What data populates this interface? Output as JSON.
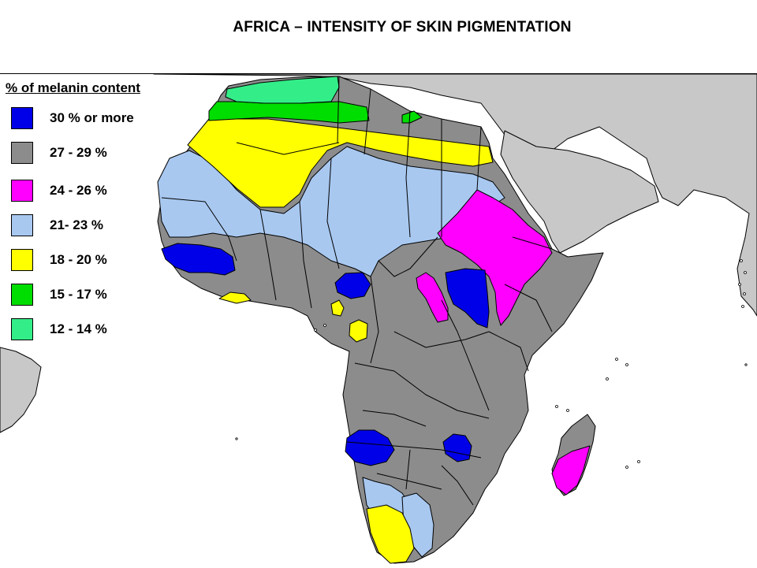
{
  "title": "AFRICA – INTENSITY OF SKIN PIGMENTATION",
  "legend": {
    "title": "% of melanin content",
    "items": [
      {
        "label": "30 % or more",
        "color": "#0000e8"
      },
      {
        "label": "27 - 29 %",
        "color": "#8c8c8c"
      },
      {
        "label": "24 - 26 %",
        "color": "#ff00ff"
      },
      {
        "label": "21- 23 %",
        "color": "#a8c8f0"
      },
      {
        "label": "18 - 20 %",
        "color": "#ffff00"
      },
      {
        "label": "15 - 17 %",
        "color": "#00dd00"
      },
      {
        "label": "12 - 14 %",
        "color": "#33ee88"
      }
    ]
  },
  "colors": {
    "land_other": "#c8c8c8",
    "border": "#000000",
    "water": "#ffffff"
  }
}
